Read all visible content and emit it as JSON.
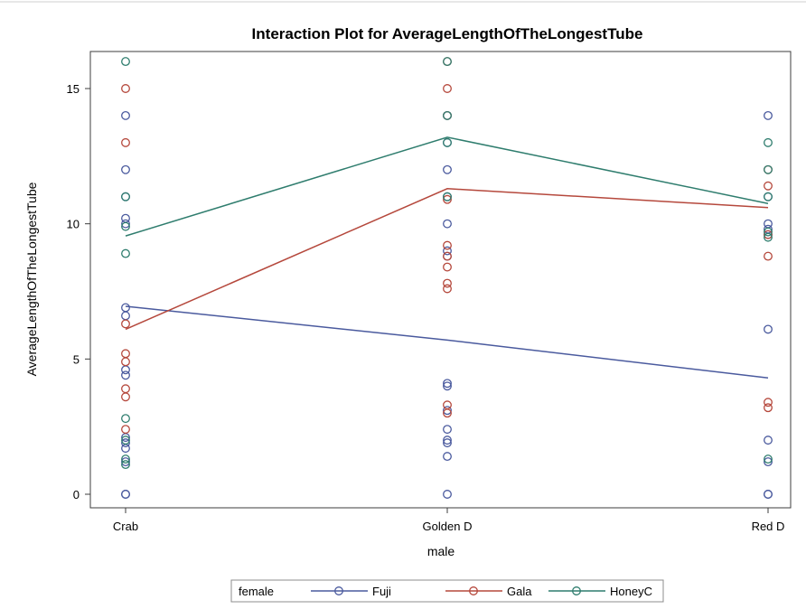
{
  "chart_data": {
    "type": "line",
    "title": "Interaction Plot for AverageLengthOfTheLongestTube",
    "xlabel": "male",
    "ylabel": "AverageLengthOfTheLongestTube",
    "categories": [
      "Crab",
      "Golden D",
      "Red D"
    ],
    "ylim": [
      0,
      16.5
    ],
    "yticks": [
      "0",
      "5",
      "10",
      "15"
    ],
    "legend_title": "female",
    "legend_position": "bottom",
    "grid": false,
    "series": [
      {
        "name": "Fuji",
        "color": "#4a5a9e",
        "means": [
          6.95,
          5.7,
          4.3
        ],
        "points": [
          [
            0,
            0
          ],
          [
            0,
            0
          ],
          [
            0,
            1.2
          ],
          [
            0,
            1.7
          ],
          [
            0,
            1.9
          ],
          [
            0,
            2.1
          ],
          [
            0,
            4.4
          ],
          [
            0,
            4.6
          ],
          [
            0,
            6.6
          ],
          [
            0,
            6.9
          ],
          [
            0,
            10.0
          ],
          [
            0,
            10.2
          ],
          [
            0,
            11.0
          ],
          [
            0,
            12.0
          ],
          [
            0,
            14.0
          ],
          [
            1,
            0
          ],
          [
            1,
            1.4
          ],
          [
            1,
            1.9
          ],
          [
            1,
            2.0
          ],
          [
            1,
            2.4
          ],
          [
            1,
            3.1
          ],
          [
            1,
            4.0
          ],
          [
            1,
            4.1
          ],
          [
            1,
            8.8
          ],
          [
            1,
            9.0
          ],
          [
            1,
            10.0
          ],
          [
            1,
            11.0
          ],
          [
            1,
            12.0
          ],
          [
            1,
            13.0
          ],
          [
            1,
            14.0
          ],
          [
            2,
            0
          ],
          [
            2,
            0
          ],
          [
            2,
            1.2
          ],
          [
            2,
            2.0
          ],
          [
            2,
            6.1
          ],
          [
            2,
            9.6
          ],
          [
            2,
            9.8
          ],
          [
            2,
            10.0
          ],
          [
            2,
            11.0
          ],
          [
            2,
            14.0
          ]
        ]
      },
      {
        "name": "Gala",
        "color": "#b5483c",
        "means": [
          6.1,
          11.3,
          10.6
        ],
        "points": [
          [
            0,
            2.4
          ],
          [
            0,
            3.6
          ],
          [
            0,
            3.9
          ],
          [
            0,
            4.9
          ],
          [
            0,
            5.2
          ],
          [
            0,
            6.3
          ],
          [
            0,
            13.0
          ],
          [
            0,
            15.0
          ],
          [
            1,
            3.0
          ],
          [
            1,
            3.3
          ],
          [
            1,
            7.6
          ],
          [
            1,
            7.8
          ],
          [
            1,
            8.4
          ],
          [
            1,
            8.8
          ],
          [
            1,
            9.2
          ],
          [
            1,
            10.9
          ],
          [
            1,
            14.0
          ],
          [
            1,
            15.0
          ],
          [
            1,
            16.0
          ],
          [
            2,
            3.2
          ],
          [
            2,
            3.4
          ],
          [
            2,
            8.8
          ],
          [
            2,
            9.6
          ],
          [
            2,
            11.4
          ],
          [
            2,
            12.0
          ]
        ]
      },
      {
        "name": "HoneyC",
        "color": "#2f7d6e",
        "means": [
          9.55,
          13.2,
          10.75
        ],
        "points": [
          [
            0,
            1.1
          ],
          [
            0,
            1.3
          ],
          [
            0,
            2.0
          ],
          [
            0,
            2.8
          ],
          [
            0,
            8.9
          ],
          [
            0,
            9.9
          ],
          [
            0,
            11.0
          ],
          [
            0,
            16.0
          ],
          [
            1,
            11.0
          ],
          [
            1,
            13.0
          ],
          [
            1,
            14.0
          ],
          [
            1,
            16.0
          ],
          [
            2,
            1.3
          ],
          [
            2,
            9.5
          ],
          [
            2,
            9.7
          ],
          [
            2,
            11.0
          ],
          [
            2,
            12.0
          ],
          [
            2,
            13.0
          ]
        ]
      }
    ]
  }
}
